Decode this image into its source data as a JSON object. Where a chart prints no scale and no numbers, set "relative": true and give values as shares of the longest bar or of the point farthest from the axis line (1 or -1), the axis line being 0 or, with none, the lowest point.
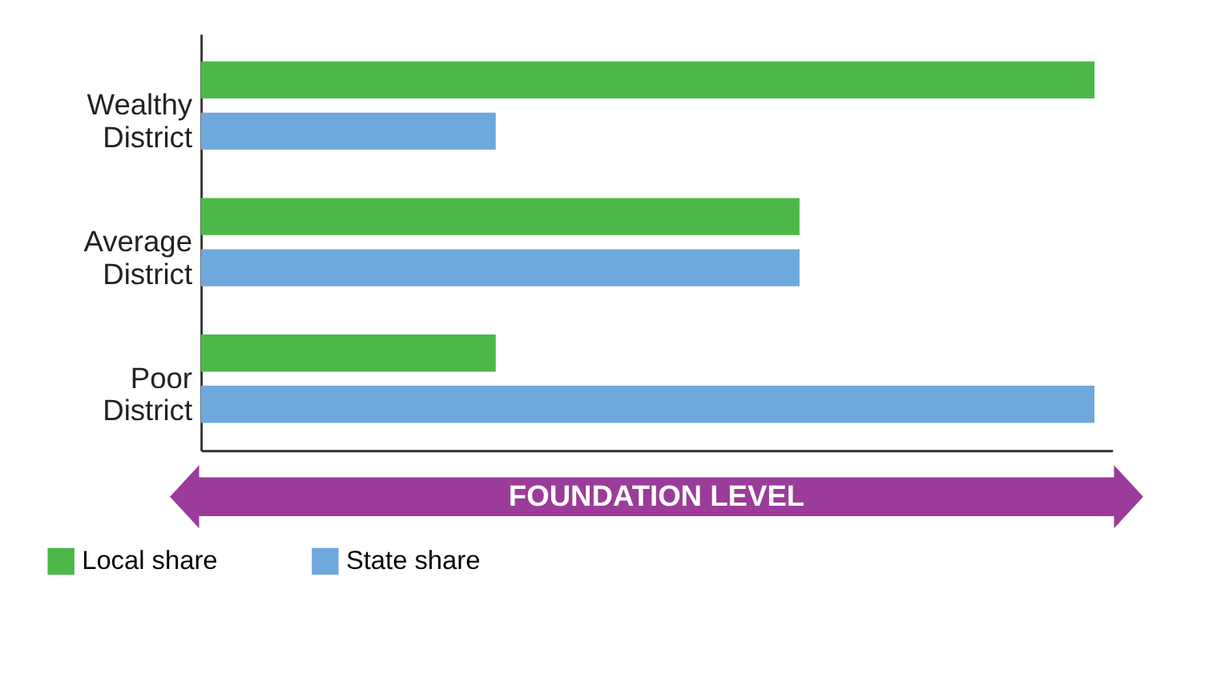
{
  "chart_data": {
    "type": "bar",
    "orientation": "horizontal",
    "relative": true,
    "categories": [
      "Wealthy District",
      "Average District",
      "Poor District"
    ],
    "series": [
      {
        "name": "Local share",
        "color": "#4cb848",
        "values": [
          1.0,
          0.67,
          0.33
        ]
      },
      {
        "name": "State share",
        "color": "#6fa8dc",
        "values": [
          0.33,
          0.67,
          1.0
        ]
      }
    ],
    "annotations": [
      "FOUNDATION LEVEL"
    ],
    "legend": "bottom left",
    "grid": false
  }
}
